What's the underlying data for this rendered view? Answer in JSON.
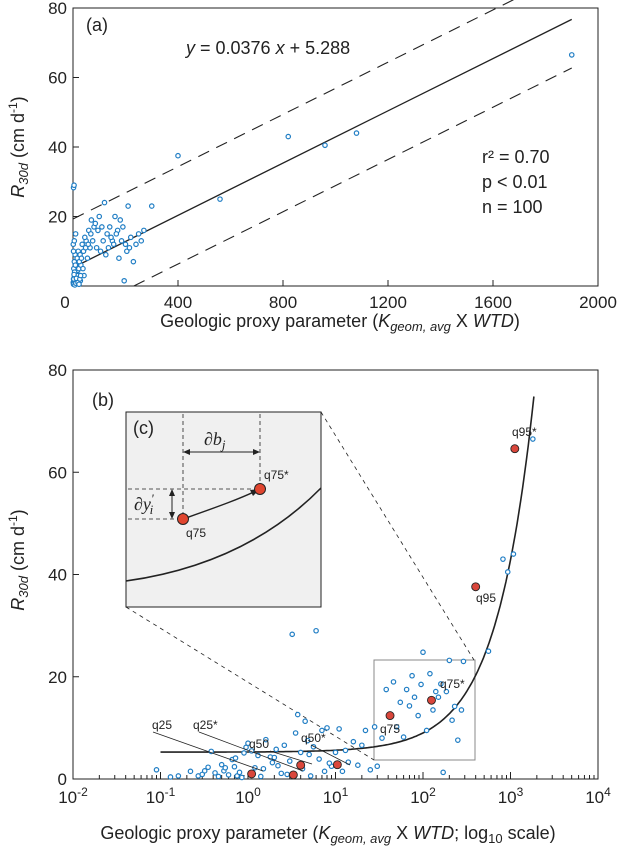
{
  "chart_data": [
    {
      "type": "scatter",
      "panel_label": "(a)",
      "xlabel_prefix": "Geologic proxy parameter (",
      "xlabel_k": "K",
      "xlabel_sub": "geom, avg",
      "xlabel_mid": " X ",
      "xlabel_wtd": "WTD",
      "xlabel_suffix": ")",
      "ylabel_r": "R",
      "ylabel_sub": "30d",
      "ylabel_units": " (cm d",
      "ylabel_exp": "-1",
      "ylabel_close": ")",
      "xlim": [
        0,
        2000
      ],
      "ylim": [
        0,
        80
      ],
      "xticks": [
        "0",
        "400",
        "800",
        "1200",
        "1600",
        "2000"
      ],
      "yticks": [
        "0",
        "20",
        "40",
        "60",
        "80"
      ],
      "equation_y": "y",
      "equation_mid": " = 0.0376 ",
      "equation_x": "x",
      "equation_end": " + 5.288",
      "stats": [
        "r² = 0.70",
        "p < 0.01",
        "n = 100"
      ],
      "fit": {
        "slope": 0.0376,
        "intercept": 5.288
      },
      "band_offset": 14,
      "point_color": "#1f7dc4",
      "points": [
        [
          1,
          1
        ],
        [
          2,
          2
        ],
        [
          3,
          0.6
        ],
        [
          4,
          1.2
        ],
        [
          5,
          2.5
        ],
        [
          6,
          3
        ],
        [
          7,
          1.5
        ],
        [
          8,
          4
        ],
        [
          10,
          2
        ],
        [
          12,
          3.5
        ],
        [
          15,
          1
        ],
        [
          18,
          4.5
        ],
        [
          20,
          2
        ],
        [
          22,
          5
        ],
        [
          25,
          3
        ],
        [
          28,
          1.5
        ],
        [
          3,
          5
        ],
        [
          5,
          7
        ],
        [
          8,
          9
        ],
        [
          12,
          6
        ],
        [
          16,
          8
        ],
        [
          20,
          10
        ],
        [
          1,
          12
        ],
        [
          2,
          10
        ],
        [
          5,
          13
        ],
        [
          10,
          15
        ],
        [
          2,
          28.3
        ],
        [
          4,
          29
        ],
        [
          40,
          10
        ],
        [
          50,
          13
        ],
        [
          60,
          16
        ],
        [
          70,
          19
        ],
        [
          80,
          17
        ],
        [
          100,
          20
        ],
        [
          120,
          24
        ],
        [
          140,
          17
        ],
        [
          160,
          20
        ],
        [
          180,
          19
        ],
        [
          210,
          23
        ],
        [
          260,
          13
        ],
        [
          300,
          23
        ],
        [
          30,
          6
        ],
        [
          35,
          12
        ],
        [
          45,
          14
        ],
        [
          55,
          8
        ],
        [
          65,
          11
        ],
        [
          75,
          13
        ],
        [
          90,
          11
        ],
        [
          110,
          17
        ],
        [
          130,
          15
        ],
        [
          150,
          13
        ],
        [
          170,
          16
        ],
        [
          190,
          17
        ],
        [
          200,
          12
        ],
        [
          220,
          14
        ],
        [
          240,
          12
        ],
        [
          6,
          4
        ],
        [
          9,
          6
        ],
        [
          14,
          2
        ],
        [
          17,
          3
        ],
        [
          24,
          7
        ],
        [
          27,
          9
        ],
        [
          32,
          8
        ],
        [
          38,
          5
        ],
        [
          42,
          3
        ],
        [
          48,
          11
        ],
        [
          58,
          12
        ],
        [
          68,
          15
        ],
        [
          85,
          18
        ],
        [
          95,
          16
        ],
        [
          105,
          10
        ],
        [
          115,
          13
        ],
        [
          125,
          9
        ],
        [
          135,
          11
        ],
        [
          145,
          14
        ],
        [
          155,
          12
        ],
        [
          165,
          15
        ],
        [
          175,
          8
        ],
        [
          185,
          13
        ],
        [
          195,
          1.5
        ],
        [
          205,
          10
        ],
        [
          215,
          11
        ],
        [
          230,
          7
        ],
        [
          250,
          15
        ],
        [
          270,
          16
        ],
        [
          2,
          0.5
        ],
        [
          3,
          2
        ],
        [
          4,
          3.3
        ],
        [
          7,
          0.3
        ],
        [
          11,
          0.8
        ],
        [
          13,
          2.2
        ],
        [
          19,
          1
        ],
        [
          23,
          0.5
        ],
        [
          26,
          2
        ],
        [
          29,
          3
        ],
        [
          400,
          37.5
        ],
        [
          560,
          25
        ],
        [
          820,
          43
        ],
        [
          960,
          40.5
        ],
        [
          1080,
          44
        ],
        [
          1900,
          66.5
        ]
      ]
    },
    {
      "type": "scatter",
      "panel_label": "(b)",
      "inset_label": "(c)",
      "xlabel_prefix": "Geologic proxy parameter (",
      "xlabel_k": "K",
      "xlabel_sub": "geom, avg",
      "xlabel_mid": " X ",
      "xlabel_wtd": "WTD",
      "xlabel_suffix": "; log",
      "xlabel_log_sub": "10",
      "xlabel_end": " scale)",
      "ylabel_r": "R",
      "ylabel_sub": "30d",
      "ylabel_units": " (cm d",
      "ylabel_exp": "-1",
      "ylabel_close": ")",
      "log_x": true,
      "xlim": [
        0.01,
        10000
      ],
      "ylim": [
        0,
        80
      ],
      "xtick_base": "10",
      "xtick_exps": [
        "-2",
        "-1",
        "0",
        "1",
        "2",
        "3",
        "4"
      ],
      "yticks": [
        "0",
        "20",
        "40",
        "60",
        "80"
      ],
      "point_color": "#1f7dc4",
      "quantile_color": "#d9463b",
      "points": [
        [
          0.09,
          1.8
        ],
        [
          0.13,
          0.4
        ],
        [
          0.16,
          0.6
        ],
        [
          0.22,
          1.5
        ],
        [
          0.27,
          0.6
        ],
        [
          0.3,
          0.9
        ],
        [
          0.32,
          1.6
        ],
        [
          0.35,
          2.3
        ],
        [
          0.42,
          1.2
        ],
        [
          0.46,
          0.5
        ],
        [
          0.5,
          2.8
        ],
        [
          0.53,
          1.6
        ],
        [
          0.6,
          0.8
        ],
        [
          0.66,
          3.8
        ],
        [
          0.7,
          2.4
        ],
        [
          0.75,
          0.6
        ],
        [
          0.8,
          1.3
        ],
        [
          0.85,
          0.3
        ],
        [
          0.9,
          5.1
        ],
        [
          0.95,
          6.2
        ],
        [
          1.0,
          7.0
        ],
        [
          1.1,
          5.5
        ],
        [
          1.2,
          2.2
        ],
        [
          1.3,
          4.6
        ],
        [
          1.4,
          0.5
        ],
        [
          1.5,
          2.0
        ],
        [
          1.6,
          7.7
        ],
        [
          1.8,
          4.3
        ],
        [
          1.9,
          3.2
        ],
        [
          2.1,
          5.8
        ],
        [
          2.2,
          2.6
        ],
        [
          2.4,
          1.1
        ],
        [
          2.6,
          6.6
        ],
        [
          2.8,
          0.9
        ],
        [
          3.0,
          3.5
        ],
        [
          3.2,
          28.3
        ],
        [
          3.5,
          9.0
        ],
        [
          3.7,
          12.6
        ],
        [
          4.0,
          5.2
        ],
        [
          4.2,
          2.0
        ],
        [
          4.5,
          11.3
        ],
        [
          4.8,
          7.5
        ],
        [
          5.2,
          0.6
        ],
        [
          5.6,
          6.3
        ],
        [
          6,
          29
        ],
        [
          6.5,
          3.9
        ],
        [
          7,
          9.5
        ],
        [
          7.5,
          1.5
        ],
        [
          8,
          10
        ],
        [
          9,
          2.5
        ],
        [
          10,
          5.2
        ],
        [
          11,
          9.8
        ],
        [
          12,
          1.5
        ],
        [
          14,
          3.3
        ],
        [
          16,
          7.3
        ],
        [
          18,
          2.7
        ],
        [
          20,
          6.6
        ],
        [
          22,
          9.5
        ],
        [
          25,
          1.8
        ],
        [
          28,
          10.2
        ],
        [
          30,
          2.5
        ],
        [
          34,
          8.0
        ],
        [
          38,
          17.5
        ],
        [
          42,
          12.5
        ],
        [
          46,
          19.0
        ],
        [
          50,
          10.2
        ],
        [
          55,
          15
        ],
        [
          60,
          8.2
        ],
        [
          65,
          17.5
        ],
        [
          70,
          14.3
        ],
        [
          75,
          20.2
        ],
        [
          80,
          16
        ],
        [
          88,
          12.4
        ],
        [
          95,
          18.5
        ],
        [
          100,
          24.8
        ],
        [
          110,
          9.5
        ],
        [
          120,
          20.6
        ],
        [
          130,
          13.5
        ],
        [
          140,
          17.1
        ],
        [
          150,
          16.0
        ],
        [
          160,
          18.6
        ],
        [
          170,
          1.3
        ],
        [
          185,
          17.1
        ],
        [
          200,
          23.2
        ],
        [
          215,
          11.5
        ],
        [
          230,
          14.2
        ],
        [
          250,
          7.6
        ],
        [
          275,
          13.5
        ],
        [
          290,
          23
        ],
        [
          560,
          25
        ],
        [
          820,
          43
        ],
        [
          930,
          40.5
        ],
        [
          1080,
          44
        ],
        [
          1800,
          66.5
        ],
        [
          0.38,
          5.4
        ],
        [
          0.55,
          2.2
        ],
        [
          0.72,
          4.1
        ],
        [
          2.0,
          4.2
        ],
        [
          5.0,
          4.8
        ],
        [
          8.5,
          3.1
        ],
        [
          13,
          5.6
        ]
      ],
      "quantiles": [
        {
          "label": "q25",
          "x": 1.1,
          "y": 1.0
        },
        {
          "label": "q25*",
          "x": 3.3,
          "y": 0.8
        },
        {
          "label": "q50",
          "x": 4.0,
          "y": 2.7
        },
        {
          "label": "q50*",
          "x": 10.5,
          "y": 2.8
        },
        {
          "label": "q75",
          "x": 42,
          "y": 12.4
        },
        {
          "label": "q75*",
          "x": 125,
          "y": 15.4
        },
        {
          "label": "q95",
          "x": 400,
          "y": 37.6
        },
        {
          "label": "q95*",
          "x": 1120,
          "y": 64.6
        }
      ],
      "curve": {
        "base": 5.25,
        "slope": 0.0376,
        "x_from": 0.1,
        "x_to": 1850
      },
      "inset": {
        "db_prefix": "∂b",
        "db_sub": "j",
        "dy_prefix": "∂y",
        "dy_sub": "i",
        "dy_prime": "'",
        "point_labels": [
          "q75",
          "q75*"
        ]
      }
    }
  ]
}
